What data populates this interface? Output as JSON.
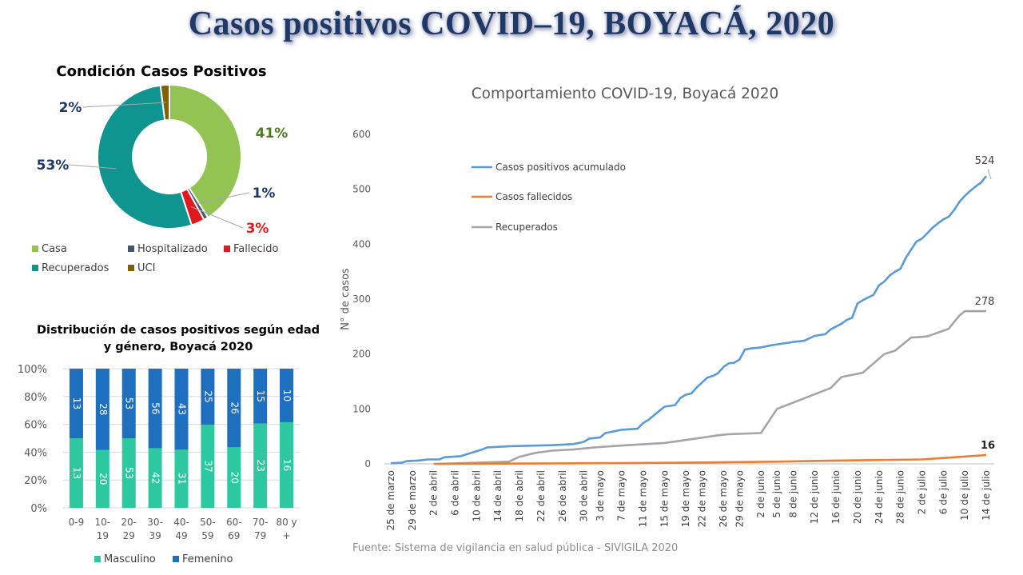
{
  "page": {
    "title": "Casos positivos COVID–19, BOYACÁ, 2020",
    "source": "Fuente: Sistema de vigilancia en salud pública - SIVIGILA 2020"
  },
  "colors": {
    "casa": "#92c353",
    "hospitalizado": "#44546a",
    "fallecido": "#e0191f",
    "recuperados": "#10948f",
    "uci": "#7f6000",
    "masculino": "#2ec8a0",
    "femenino": "#1f6fbf",
    "acumulado": "#5b9bd5",
    "fallecidos": "#ed7d31",
    "recuperados_line": "#a5a5a5"
  },
  "chart_data": [
    {
      "type": "pie",
      "title": "Condición Casos Positivos",
      "categories": [
        "Casa",
        "Hospitalizado",
        "Fallecido",
        "Recuperados",
        "UCI"
      ],
      "values": [
        41,
        1,
        3,
        53,
        2
      ],
      "labels": [
        "41%",
        "1%",
        "3%",
        "53%",
        "2%"
      ],
      "legend": "bottom"
    },
    {
      "type": "bar",
      "stacked": "percent",
      "title": "Distribución de casos positivos según edad y género, Boyacá 2020",
      "categories": [
        "0-9",
        "10-19",
        "20-29",
        "30-39",
        "40-49",
        "50-59",
        "60-69",
        "70-79",
        "80 y +"
      ],
      "category_lines": [
        [
          "0-9"
        ],
        [
          "10-",
          "19"
        ],
        [
          "20-",
          "29"
        ],
        [
          "30-",
          "39"
        ],
        [
          "40-",
          "49"
        ],
        [
          "50-",
          "59"
        ],
        [
          "60-",
          "69"
        ],
        [
          "70-",
          "79"
        ],
        [
          "80 y",
          "+"
        ]
      ],
      "series": [
        {
          "name": "Masculino",
          "values": [
            13,
            20,
            53,
            42,
            31,
            37,
            20,
            23,
            16
          ]
        },
        {
          "name": "Femenino",
          "values": [
            13,
            28,
            53,
            56,
            43,
            25,
            26,
            15,
            10
          ]
        }
      ],
      "ylim": [
        0,
        100
      ],
      "yticks": [
        "0%",
        "20%",
        "40%",
        "60%",
        "80%",
        "100%"
      ],
      "legend": "bottom"
    },
    {
      "type": "line",
      "title": "Comportamiento COVID-19, Boyacá 2020",
      "ylabel": "N° de casos",
      "xlabel": "",
      "ylim": [
        0,
        600
      ],
      "yticks": [
        "0",
        "100",
        "200",
        "300",
        "400",
        "500",
        "600"
      ],
      "x_tick_labels": [
        "25 de marzo",
        "29 de marzo",
        "2 de abril",
        "6 de abril",
        "10 de abril",
        "14 de abril",
        "18 de abril",
        "22 de abril",
        "26 de abril",
        "30 de abril",
        "3 de mayo",
        "7 de mayo",
        "11 de mayo",
        "15 de mayo",
        "19 de mayo",
        "22 de mayo",
        "26 de mayo",
        "29 de mayo",
        "2 de junio",
        "5 de junio",
        "8 de junio",
        "12 de junio",
        "16 de junio",
        "20 de junio",
        "24 de junio",
        "28 de junio",
        "2 de julio",
        "6 de julio",
        "10 de julio",
        "14 de julio"
      ],
      "legend": "top-left",
      "series": [
        {
          "name": "Casos positivos acumulado",
          "end_label": "524",
          "points": [
            [
              "25 de marzo",
              1
            ],
            [
              "27 de marzo",
              2
            ],
            [
              "28 de marzo",
              5
            ],
            [
              "30 de marzo",
              6
            ],
            [
              "1 de abril",
              8
            ],
            [
              "3 de abril",
              8
            ],
            [
              "4 de abril",
              12
            ],
            [
              "7 de abril",
              14
            ],
            [
              "9 de abril",
              20
            ],
            [
              "11 de abril",
              26
            ],
            [
              "12 de abril",
              30
            ],
            [
              "16 de abril",
              32
            ],
            [
              "20 de abril",
              33
            ],
            [
              "24 de abril",
              34
            ],
            [
              "28 de abril",
              36
            ],
            [
              "30 de abril",
              40
            ],
            [
              "1 de mayo",
              46
            ],
            [
              "3 de mayo",
              48
            ],
            [
              "4 de mayo",
              56
            ],
            [
              "5 de mayo",
              58
            ],
            [
              "7 de mayo",
              62
            ],
            [
              "10 de mayo",
              64
            ],
            [
              "11 de mayo",
              74
            ],
            [
              "12 de mayo",
              80
            ],
            [
              "13 de mayo",
              88
            ],
            [
              "15 de mayo",
              104
            ],
            [
              "17 de mayo",
              107
            ],
            [
              "18 de mayo",
              120
            ],
            [
              "19 de mayo",
              126
            ],
            [
              "20 de mayo",
              128
            ],
            [
              "21 de mayo",
              139
            ],
            [
              "22 de mayo",
              148
            ],
            [
              "23 de mayo",
              157
            ],
            [
              "24 de mayo",
              160
            ],
            [
              "25 de mayo",
              165
            ],
            [
              "26 de mayo",
              176
            ],
            [
              "27 de mayo",
              183
            ],
            [
              "28 de mayo",
              184
            ],
            [
              "29 de mayo",
              190
            ],
            [
              "30 de mayo",
              208
            ],
            [
              "31 de mayo",
              210
            ],
            [
              "2 de junio",
              212
            ],
            [
              "4 de junio",
              216
            ],
            [
              "6 de junio",
              219
            ],
            [
              "8 de junio",
              222
            ],
            [
              "10 de junio",
              224
            ],
            [
              "12 de junio",
              233
            ],
            [
              "14 de junio",
              236
            ],
            [
              "15 de junio",
              245
            ],
            [
              "16 de junio",
              250
            ],
            [
              "17 de junio",
              255
            ],
            [
              "18 de junio",
              262
            ],
            [
              "19 de junio",
              266
            ],
            [
              "20 de junio",
              292
            ],
            [
              "21 de junio",
              298
            ],
            [
              "23 de junio",
              308
            ],
            [
              "24 de junio",
              325
            ],
            [
              "25 de junio",
              332
            ],
            [
              "26 de junio",
              343
            ],
            [
              "27 de junio",
              350
            ],
            [
              "28 de junio",
              355
            ],
            [
              "29 de junio",
              375
            ],
            [
              "30 de junio",
              390
            ],
            [
              "1 de julio",
              405
            ],
            [
              "2 de julio",
              410
            ],
            [
              "3 de julio",
              420
            ],
            [
              "4 de julio",
              430
            ],
            [
              "5 de julio",
              438
            ],
            [
              "6 de julio",
              445
            ],
            [
              "7 de julio",
              450
            ],
            [
              "8 de julio",
              462
            ],
            [
              "9 de julio",
              477
            ],
            [
              "10 de julio",
              488
            ],
            [
              "11 de julio",
              497
            ],
            [
              "12 de julio",
              505
            ],
            [
              "13 de julio",
              512
            ],
            [
              "14 de julio",
              524
            ]
          ]
        },
        {
          "name": "Casos fallecidos",
          "end_label": "16",
          "points": [
            [
              "2 de abril",
              0
            ],
            [
              "30 de abril",
              1
            ],
            [
              "18 de mayo",
              2
            ],
            [
              "5 de junio",
              4
            ],
            [
              "16 de junio",
              6
            ],
            [
              "2 de julio",
              8
            ],
            [
              "8 de julio",
              12
            ],
            [
              "14 de julio",
              16
            ]
          ]
        },
        {
          "name": "Recuperados",
          "end_label": "278",
          "points": [
            [
              "3 de abril",
              0
            ],
            [
              "16 de abril",
              4
            ],
            [
              "18 de abril",
              13
            ],
            [
              "21 de abril",
              20
            ],
            [
              "24 de abril",
              24
            ],
            [
              "28 de abril",
              26
            ],
            [
              "2 de mayo",
              30
            ],
            [
              "8 de mayo",
              34
            ],
            [
              "15 de mayo",
              38
            ],
            [
              "18 de mayo",
              42
            ],
            [
              "25 de mayo",
              52
            ],
            [
              "27 de mayo",
              54
            ],
            [
              "2 de junio",
              56
            ],
            [
              "5 de junio",
              100
            ],
            [
              "15 de junio",
              138
            ],
            [
              "17 de junio",
              158
            ],
            [
              "21 de junio",
              166
            ],
            [
              "25 de junio",
              200
            ],
            [
              "27 de junio",
              206
            ],
            [
              "30 de junio",
              230
            ],
            [
              "3 de julio",
              232
            ],
            [
              "7 de julio",
              246
            ],
            [
              "9 de julio",
              270
            ],
            [
              "10 de julio",
              278
            ],
            [
              "14 de julio",
              278
            ]
          ]
        }
      ]
    }
  ]
}
